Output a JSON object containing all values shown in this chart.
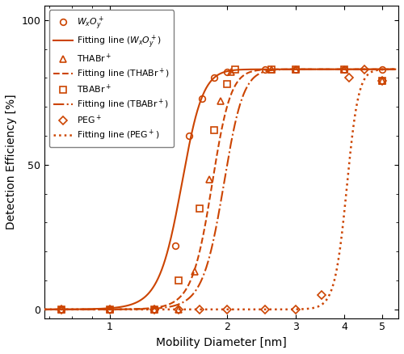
{
  "color": "#cc4400",
  "WxOy_data_x": [
    0.75,
    1.0,
    1.3,
    1.47,
    1.6,
    1.72,
    1.85,
    2.0,
    2.5,
    3.0,
    4.0,
    5.0
  ],
  "WxOy_data_y": [
    0,
    0,
    0,
    22,
    60,
    73,
    80,
    82,
    83,
    83,
    83,
    83
  ],
  "WxOy_fit_x50": 1.52,
  "WxOy_fit_k": 10.0,
  "WxOy_fit_max": 83,
  "THABr_data_x": [
    0.75,
    1.0,
    1.3,
    1.5,
    1.65,
    1.8,
    1.92,
    2.05,
    2.6,
    3.0,
    4.0,
    5.0
  ],
  "THABr_data_y": [
    0,
    0,
    0,
    0,
    13,
    45,
    72,
    82,
    83,
    83,
    83,
    79
  ],
  "THABr_fit_x50": 1.82,
  "THABr_fit_k": 9.5,
  "THABr_fit_max": 83,
  "TBABr_data_x": [
    0.75,
    1.0,
    1.3,
    1.5,
    1.7,
    1.85,
    2.0,
    2.1,
    2.6,
    3.0,
    4.0,
    5.0
  ],
  "TBABr_data_y": [
    0,
    0,
    0,
    10,
    35,
    62,
    78,
    83,
    83,
    83,
    83,
    79
  ],
  "TBABr_fit_x50": 1.95,
  "TBABr_fit_k": 8.5,
  "TBABr_fit_max": 83,
  "PEG_data_x": [
    0.75,
    1.0,
    1.3,
    1.5,
    1.7,
    2.0,
    2.5,
    3.0,
    3.5,
    4.1,
    4.5,
    5.0
  ],
  "PEG_data_y": [
    0,
    0,
    0,
    0,
    0,
    0,
    0,
    0,
    5,
    80,
    83,
    79
  ],
  "PEG_fit_x50": 4.05,
  "PEG_fit_k": 7.0,
  "PEG_fit_max": 83,
  "xlabel": "Mobility Diameter [nm]",
  "ylabel": "Detection Efficiency [%]",
  "xlim_min": 0.68,
  "xlim_max": 5.5,
  "ylim_min": -3,
  "ylim_max": 105
}
